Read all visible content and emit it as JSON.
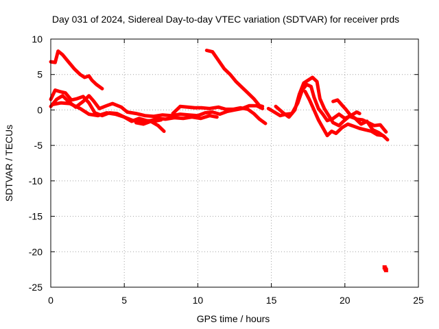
{
  "chart_data": {
    "type": "scatter",
    "title": "Day 031 of 2024, Sidereal Day-to-day VTEC variation (SDTVAR) for receiver prds",
    "xlabel": "GPS time / hours",
    "ylabel": "SDTVAR / TECUs",
    "xlim": [
      0,
      25
    ],
    "ylim": [
      -25,
      10
    ],
    "xticks": [
      "0",
      "5",
      "10",
      "15",
      "20",
      "25"
    ],
    "yticks": [
      "10",
      "5",
      "0",
      "-5",
      "-10",
      "-15",
      "-20",
      "-25"
    ],
    "grid": true,
    "color": "#ff0000",
    "series": [
      {
        "name": "track-1",
        "points": [
          [
            0,
            6.8
          ],
          [
            0.3,
            6.7
          ],
          [
            0.5,
            8.3
          ],
          [
            0.8,
            7.8
          ],
          [
            1.2,
            6.8
          ],
          [
            1.6,
            5.8
          ],
          [
            2.0,
            5.0
          ],
          [
            2.3,
            4.6
          ],
          [
            2.6,
            4.8
          ],
          [
            2.8,
            4.2
          ],
          [
            3.1,
            3.6
          ],
          [
            3.5,
            3.0
          ]
        ]
      },
      {
        "name": "track-2",
        "points": [
          [
            10.6,
            8.4
          ],
          [
            11.0,
            8.2
          ],
          [
            11.4,
            7.0
          ],
          [
            11.8,
            5.8
          ],
          [
            12.2,
            5.0
          ],
          [
            12.6,
            4.0
          ],
          [
            13.0,
            3.2
          ],
          [
            13.4,
            2.4
          ],
          [
            13.8,
            1.6
          ],
          [
            14.2,
            0.6
          ],
          [
            14.4,
            0.5
          ]
        ]
      },
      {
        "name": "track-3",
        "points": [
          [
            0,
            1.5
          ],
          [
            0.3,
            2.8
          ],
          [
            0.6,
            2.6
          ],
          [
            1.0,
            2.4
          ],
          [
            1.4,
            1.4
          ],
          [
            1.8,
            1.6
          ],
          [
            2.2,
            1.9
          ],
          [
            2.6,
            1.0
          ],
          [
            3.0,
            -0.4
          ],
          [
            3.5,
            -0.8
          ],
          [
            4.0,
            -0.4
          ],
          [
            4.5,
            -0.5
          ],
          [
            5.0,
            -1.0
          ],
          [
            5.5,
            -1.6
          ],
          [
            6.0,
            -1.2
          ],
          [
            6.5,
            -1.5
          ],
          [
            7.0,
            -1.6
          ],
          [
            7.5,
            -1.4
          ]
        ]
      },
      {
        "name": "track-4",
        "points": [
          [
            0,
            0.5
          ],
          [
            0.4,
            1.5
          ],
          [
            0.8,
            2.0
          ],
          [
            1.2,
            1.2
          ],
          [
            1.7,
            0.4
          ],
          [
            2.2,
            1.2
          ],
          [
            2.6,
            2.0
          ],
          [
            2.9,
            1.3
          ],
          [
            3.3,
            0.2
          ],
          [
            3.8,
            0.6
          ],
          [
            4.2,
            0.9
          ],
          [
            4.8,
            0.4
          ],
          [
            5.2,
            -0.3
          ],
          [
            5.8,
            -0.5
          ],
          [
            6.4,
            -0.8
          ],
          [
            7.0,
            -0.9
          ],
          [
            7.6,
            -0.7
          ],
          [
            8.2,
            -0.8
          ],
          [
            8.8,
            -0.6
          ],
          [
            9.4,
            -0.7
          ],
          [
            10.0,
            -0.8
          ],
          [
            10.5,
            -0.4
          ],
          [
            11.0,
            -0.3
          ],
          [
            11.5,
            -0.6
          ],
          [
            12.0,
            -0.2
          ],
          [
            12.5,
            0.0
          ],
          [
            13.0,
            0.2
          ],
          [
            13.5,
            0.6
          ],
          [
            14.0,
            0.6
          ],
          [
            14.4,
            0.2
          ]
        ]
      },
      {
        "name": "track-5",
        "points": [
          [
            0.2,
            0.8
          ],
          [
            0.7,
            1.0
          ],
          [
            1.3,
            0.9
          ],
          [
            2.0,
            0.2
          ],
          [
            2.6,
            -0.6
          ],
          [
            3.2,
            -0.8
          ],
          [
            3.8,
            -0.4
          ],
          [
            4.4,
            -0.6
          ],
          [
            5.0,
            -1.0
          ],
          [
            5.6,
            -1.5
          ],
          [
            6.2,
            -1.7
          ],
          [
            6.8,
            -1.5
          ],
          [
            7.3,
            -1.2
          ],
          [
            7.8,
            -1.3
          ],
          [
            8.4,
            -1.1
          ],
          [
            9.0,
            -1.2
          ],
          [
            9.6,
            -1.0
          ],
          [
            10.2,
            -1.2
          ],
          [
            10.8,
            -0.8
          ],
          [
            11.3,
            -1.0
          ]
        ]
      },
      {
        "name": "track-6",
        "points": [
          [
            5.8,
            -1.8
          ],
          [
            6.3,
            -2.0
          ],
          [
            6.8,
            -1.6
          ],
          [
            7.3,
            -2.2
          ],
          [
            7.7,
            -3.0
          ]
        ]
      },
      {
        "name": "track-7",
        "points": [
          [
            8.3,
            -0.5
          ],
          [
            8.8,
            0.5
          ],
          [
            9.3,
            0.4
          ],
          [
            9.8,
            0.3
          ],
          [
            10.3,
            0.3
          ],
          [
            10.8,
            0.2
          ],
          [
            11.4,
            0.4
          ],
          [
            11.9,
            0.1
          ],
          [
            12.4,
            0.1
          ],
          [
            12.9,
            0.3
          ],
          [
            13.4,
            0.1
          ],
          [
            13.8,
            -0.5
          ],
          [
            14.2,
            -1.3
          ],
          [
            14.6,
            -1.9
          ]
        ]
      },
      {
        "name": "track-8",
        "points": [
          [
            14.8,
            0.2
          ],
          [
            15.2,
            -0.3
          ],
          [
            15.6,
            -0.8
          ],
          [
            16.0,
            -0.6
          ],
          [
            16.4,
            -0.5
          ],
          [
            16.8,
            1.0
          ],
          [
            17.1,
            2.8
          ],
          [
            17.4,
            3.6
          ],
          [
            17.7,
            3.3
          ],
          [
            17.9,
            1.8
          ],
          [
            18.2,
            0.2
          ],
          [
            18.5,
            -0.6
          ],
          [
            18.8,
            -1.5
          ],
          [
            19.2,
            -1.2
          ],
          [
            19.6,
            -0.6
          ],
          [
            20.0,
            -1.2
          ],
          [
            20.4,
            -0.8
          ],
          [
            20.8,
            -1.3
          ],
          [
            21.2,
            -1.4
          ],
          [
            21.6,
            -1.8
          ],
          [
            22.0,
            -2.2
          ],
          [
            22.4,
            -2.1
          ],
          [
            22.8,
            -3.1
          ]
        ]
      },
      {
        "name": "track-9",
        "points": [
          [
            15.3,
            0.5
          ],
          [
            15.8,
            -0.4
          ],
          [
            16.2,
            -1.0
          ],
          [
            16.6,
            0.0
          ],
          [
            16.9,
            2.2
          ],
          [
            17.2,
            3.8
          ],
          [
            17.5,
            4.2
          ],
          [
            17.8,
            4.6
          ],
          [
            18.1,
            4.0
          ],
          [
            18.3,
            1.6
          ],
          [
            18.6,
            0.2
          ],
          [
            18.9,
            -0.8
          ],
          [
            19.2,
            -1.8
          ],
          [
            19.6,
            -2.2
          ],
          [
            19.9,
            -1.6
          ],
          [
            20.3,
            -0.9
          ],
          [
            20.7,
            -1.2
          ],
          [
            21.1,
            -2.0
          ],
          [
            21.5,
            -1.6
          ],
          [
            21.9,
            -2.8
          ],
          [
            22.3,
            -3.2
          ],
          [
            22.7,
            -3.8
          ]
        ]
      },
      {
        "name": "track-10",
        "points": [
          [
            17.3,
            2.6
          ],
          [
            17.6,
            1.4
          ],
          [
            17.9,
            0.0
          ],
          [
            18.2,
            -1.4
          ],
          [
            18.5,
            -2.5
          ],
          [
            18.8,
            -3.6
          ],
          [
            19.1,
            -3.0
          ],
          [
            19.4,
            -3.3
          ],
          [
            19.8,
            -2.5
          ],
          [
            20.2,
            -2.0
          ],
          [
            20.6,
            -2.3
          ],
          [
            21.0,
            -2.6
          ],
          [
            21.4,
            -2.8
          ],
          [
            21.8,
            -3.0
          ],
          [
            22.2,
            -3.5
          ],
          [
            22.6,
            -3.6
          ],
          [
            22.9,
            -4.2
          ]
        ]
      },
      {
        "name": "track-11",
        "points": [
          [
            19.2,
            1.2
          ],
          [
            19.5,
            1.4
          ],
          [
            19.8,
            0.7
          ],
          [
            20.1,
            0.0
          ],
          [
            20.4,
            -0.8
          ],
          [
            20.8,
            -0.3
          ],
          [
            21.0,
            -0.5
          ]
        ]
      },
      {
        "name": "outlier",
        "points": [
          [
            22.7,
            -22.2
          ],
          [
            22.8,
            -22.6
          ],
          [
            22.75,
            -22.4
          ]
        ]
      }
    ]
  }
}
